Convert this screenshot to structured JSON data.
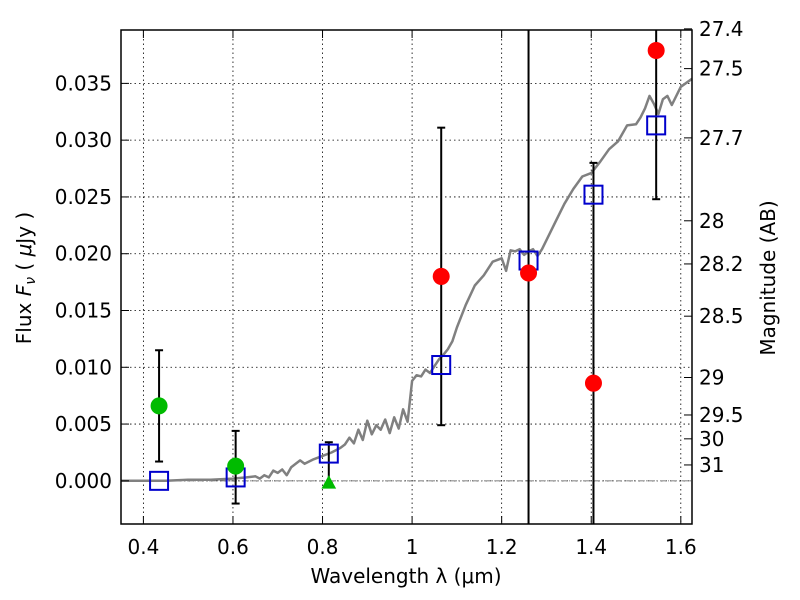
{
  "chart_data": {
    "type": "scatter",
    "xlabel": "Wavelength  λ (μm)",
    "ylabel": "Flux  F_ν  ( μJy )",
    "ylabel_parts": {
      "pre": "Flux  ",
      "var": "F",
      "sub": "ν",
      "mid": "  ( ",
      "mu": "μ",
      "post": "Jy )"
    },
    "y2label": "Magnitude (AB)",
    "xlim": [
      0.35,
      1.625
    ],
    "ylim": [
      -0.0038,
      0.0397
    ],
    "grid": true,
    "x_ticks": [
      {
        "value": 0.4,
        "label": "0.4"
      },
      {
        "value": 0.6,
        "label": "0.6"
      },
      {
        "value": 0.8,
        "label": "0.8"
      },
      {
        "value": 1.0,
        "label": "1"
      },
      {
        "value": 1.2,
        "label": "1.2"
      },
      {
        "value": 1.4,
        "label": "1.4"
      },
      {
        "value": 1.6,
        "label": "1.6"
      }
    ],
    "y_ticks": [
      {
        "value": 0.0,
        "label": "0.000"
      },
      {
        "value": 0.005,
        "label": "0.005"
      },
      {
        "value": 0.01,
        "label": "0.010"
      },
      {
        "value": 0.015,
        "label": "0.015"
      },
      {
        "value": 0.02,
        "label": "0.020"
      },
      {
        "value": 0.025,
        "label": "0.025"
      },
      {
        "value": 0.03,
        "label": "0.030"
      },
      {
        "value": 0.035,
        "label": "0.035"
      }
    ],
    "y2_ticks": [
      {
        "label": "27.4",
        "flux": 0.0398
      },
      {
        "label": "27.5",
        "flux": 0.0363
      },
      {
        "label": "27.7",
        "flux": 0.0302
      },
      {
        "label": "28",
        "flux": 0.0229
      },
      {
        "label": "28.2",
        "flux": 0.0191
      },
      {
        "label": "28.5",
        "flux": 0.0145
      },
      {
        "label": "29",
        "flux": 0.0091
      },
      {
        "label": "29.5",
        "flux": 0.0058
      },
      {
        "label": "30",
        "flux": 0.0037
      },
      {
        "label": "31",
        "flux": 0.0014
      }
    ],
    "series": [
      {
        "kind": "line",
        "color": "#808080",
        "x": [
          0.35,
          0.4,
          0.45,
          0.5,
          0.55,
          0.6,
          0.63,
          0.65,
          0.66,
          0.67,
          0.68,
          0.69,
          0.7,
          0.71,
          0.72,
          0.73,
          0.74,
          0.75,
          0.76,
          0.78,
          0.8,
          0.82,
          0.84,
          0.85,
          0.86,
          0.87,
          0.88,
          0.89,
          0.9,
          0.91,
          0.92,
          0.93,
          0.94,
          0.95,
          0.96,
          0.97,
          0.98,
          0.99,
          1.0,
          1.01,
          1.02,
          1.03,
          1.04,
          1.05,
          1.06,
          1.07,
          1.08,
          1.09,
          1.1,
          1.12,
          1.14,
          1.16,
          1.18,
          1.2,
          1.21,
          1.22,
          1.23,
          1.24,
          1.25,
          1.26,
          1.27,
          1.28,
          1.29,
          1.3,
          1.32,
          1.34,
          1.36,
          1.38,
          1.4,
          1.42,
          1.44,
          1.46,
          1.48,
          1.5,
          1.51,
          1.52,
          1.53,
          1.54,
          1.55,
          1.56,
          1.57,
          1.58,
          1.6,
          1.625
        ],
        "y": [
          0.0,
          0.0,
          0.0,
          0.0001,
          0.0001,
          0.0002,
          0.0003,
          0.0004,
          0.0002,
          0.0005,
          0.0003,
          0.0009,
          0.0007,
          0.001,
          0.0005,
          0.0012,
          0.0015,
          0.0018,
          0.0015,
          0.0019,
          0.0022,
          0.0025,
          0.0029,
          0.0032,
          0.0038,
          0.0033,
          0.0045,
          0.0036,
          0.0053,
          0.0041,
          0.0049,
          0.0045,
          0.0054,
          0.0042,
          0.0056,
          0.0046,
          0.0063,
          0.0052,
          0.0088,
          0.0093,
          0.0092,
          0.0098,
          0.0095,
          0.0101,
          0.0107,
          0.0111,
          0.0116,
          0.0123,
          0.0135,
          0.0155,
          0.0172,
          0.0181,
          0.0193,
          0.0196,
          0.0185,
          0.0203,
          0.0202,
          0.0204,
          0.0199,
          0.0202,
          0.0204,
          0.0198,
          0.0204,
          0.0212,
          0.0228,
          0.0244,
          0.0257,
          0.0268,
          0.0271,
          0.0281,
          0.0292,
          0.0299,
          0.0313,
          0.0314,
          0.032,
          0.0328,
          0.0339,
          0.0332,
          0.0323,
          0.0336,
          0.0339,
          0.0331,
          0.0347,
          0.0354
        ]
      },
      {
        "kind": "markers",
        "marker": "open-square",
        "color": "#0000cc",
        "x": [
          0.435,
          0.606,
          0.814,
          1.065,
          1.26,
          1.405,
          1.545
        ],
        "y": [
          0.0,
          0.0003,
          0.0024,
          0.0102,
          0.0194,
          0.0252,
          0.0313
        ]
      },
      {
        "kind": "markers",
        "marker": "circle",
        "color": "#00bb00",
        "x": [
          0.435,
          0.606
        ],
        "y": [
          0.0066,
          0.0013
        ]
      },
      {
        "kind": "markers",
        "marker": "triangle",
        "color": "#00bb00",
        "x": [
          0.814
        ],
        "y": [
          -0.0002
        ]
      },
      {
        "kind": "markers",
        "marker": "circle",
        "color": "#ff0000",
        "x": [
          1.065,
          1.26,
          1.405,
          1.545
        ],
        "y": [
          0.018,
          0.0183,
          0.0086,
          0.0379
        ]
      }
    ],
    "error_bars": [
      {
        "x": 0.435,
        "low": 0.0017,
        "high": 0.0115
      },
      {
        "x": 0.606,
        "low": -0.002,
        "high": 0.0044
      },
      {
        "x": 0.814,
        "low": -0.0002,
        "high": 0.0034
      },
      {
        "x": 1.065,
        "low": 0.0049,
        "high": 0.0311
      },
      {
        "x": 1.26,
        "low": -0.0038,
        "high": 0.0397,
        "capped": false
      },
      {
        "x": 1.405,
        "low": -0.0038,
        "high": 0.028
      },
      {
        "x": 1.545,
        "low": 0.0248,
        "high": 0.0397
      }
    ]
  }
}
